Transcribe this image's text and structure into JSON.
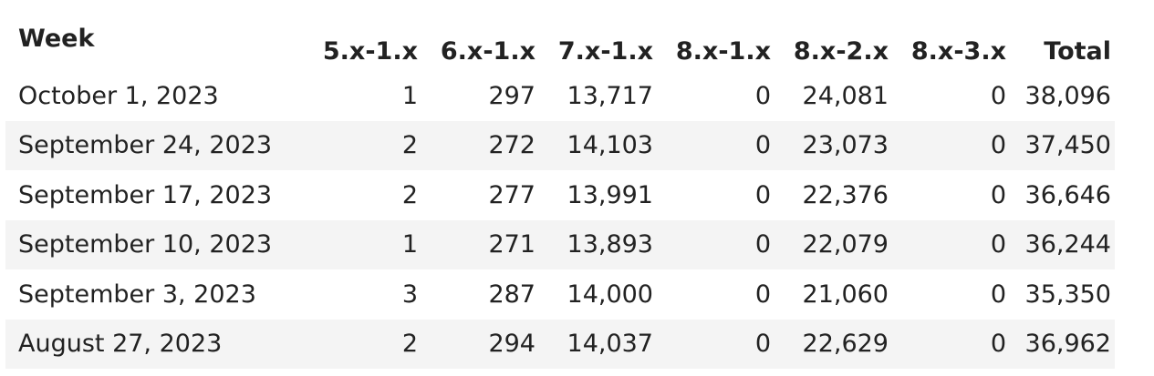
{
  "table": {
    "headers": [
      "Week",
      "5.x-1.x",
      "6.x-1.x",
      "7.x-1.x",
      "8.x-1.x",
      "8.x-2.x",
      "8.x-3.x",
      "Total"
    ],
    "rows": [
      [
        "October 1, 2023",
        "1",
        "297",
        "13,717",
        "0",
        "24,081",
        "0",
        "38,096"
      ],
      [
        "September 24, 2023",
        "2",
        "272",
        "14,103",
        "0",
        "23,073",
        "0",
        "37,450"
      ],
      [
        "September 17, 2023",
        "2",
        "277",
        "13,991",
        "0",
        "22,376",
        "0",
        "36,646"
      ],
      [
        "September 10, 2023",
        "1",
        "271",
        "13,893",
        "0",
        "22,079",
        "0",
        "36,244"
      ],
      [
        "September 3, 2023",
        "3",
        "287",
        "14,000",
        "0",
        "21,060",
        "0",
        "35,350"
      ],
      [
        "August 27, 2023",
        "2",
        "294",
        "14,037",
        "0",
        "22,629",
        "0",
        "36,962"
      ]
    ],
    "stripe_color": "#f4f4f4",
    "text_color": "#222222"
  }
}
